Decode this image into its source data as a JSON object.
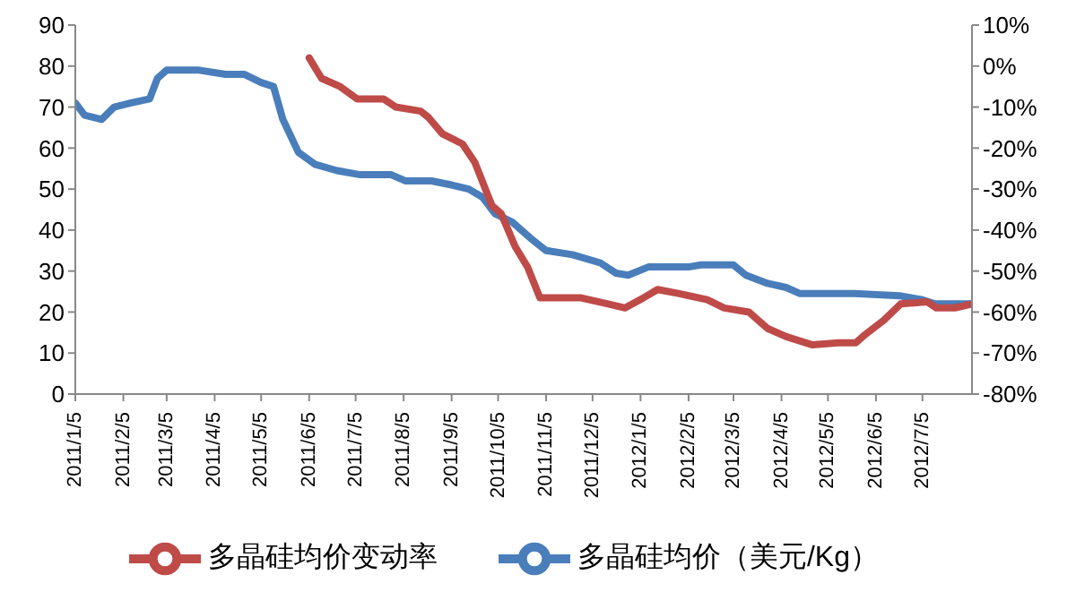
{
  "chart_data": {
    "type": "line",
    "legend": "bottom",
    "marker": "none",
    "line_style": "solid",
    "grid": false,
    "xlim": [
      "2011-01-05",
      "2012-08-06"
    ],
    "xticks": [
      {
        "value": "2011-01-05",
        "label": "2011/1/5"
      },
      {
        "value": "2011-02-05",
        "label": "2011/2/5"
      },
      {
        "value": "2011-03-05",
        "label": "2011/3/5"
      },
      {
        "value": "2011-04-05",
        "label": "2011/4/5"
      },
      {
        "value": "2011-05-05",
        "label": "2011/5/5"
      },
      {
        "value": "2011-06-05",
        "label": "2011/6/5"
      },
      {
        "value": "2011-07-05",
        "label": "2011/7/5"
      },
      {
        "value": "2011-08-05",
        "label": "2011/8/5"
      },
      {
        "value": "2011-09-05",
        "label": "2011/9/5"
      },
      {
        "value": "2011-10-05",
        "label": "2011/10/5"
      },
      {
        "value": "2011-11-05",
        "label": "2011/11/5"
      },
      {
        "value": "2011-12-05",
        "label": "2011/12/5"
      },
      {
        "value": "2012-01-05",
        "label": "2012/1/5"
      },
      {
        "value": "2012-02-05",
        "label": "2012/2/5"
      },
      {
        "value": "2012-03-05",
        "label": "2012/3/5"
      },
      {
        "value": "2012-04-05",
        "label": "2012/4/5"
      },
      {
        "value": "2012-05-05",
        "label": "2012/5/5"
      },
      {
        "value": "2012-06-05",
        "label": "2012/6/5"
      },
      {
        "value": "2012-07-05",
        "label": "2012/7/5"
      }
    ],
    "ylim": [
      0,
      90
    ],
    "yticks": [
      0,
      10,
      20,
      30,
      40,
      50,
      60,
      70,
      80,
      90
    ],
    "y2lim": [
      -80,
      10
    ],
    "y2ticks": [
      {
        "value": -80,
        "label": "-80%"
      },
      {
        "value": -70,
        "label": "-70%"
      },
      {
        "value": -60,
        "label": "-60%"
      },
      {
        "value": -50,
        "label": "-50%"
      },
      {
        "value": -40,
        "label": "-40%"
      },
      {
        "value": -30,
        "label": "-30%"
      },
      {
        "value": -20,
        "label": "-20%"
      },
      {
        "value": -10,
        "label": "-10%"
      },
      {
        "value": 0,
        "label": "0%"
      },
      {
        "value": 10,
        "label": "10%"
      }
    ],
    "series": [
      {
        "name": "多晶硅均价（美元/Kg）",
        "color": "#4a7ebb",
        "x": [
          "2011-01-05",
          "2011-01-11",
          "2011-01-22",
          "2011-01-30",
          "2011-02-10",
          "2011-02-22",
          "2011-02-27",
          "2011-03-05",
          "2011-03-26",
          "2011-04-12",
          "2011-04-24",
          "2011-05-05",
          "2011-05-13",
          "2011-05-19",
          "2011-05-29",
          "2011-06-09",
          "2011-06-23",
          "2011-07-08",
          "2011-07-28",
          "2011-08-06",
          "2011-08-23",
          "2011-09-05",
          "2011-09-16",
          "2011-09-25",
          "2011-10-03",
          "2011-10-14",
          "2011-10-26",
          "2011-11-05",
          "2011-11-22",
          "2011-12-10",
          "2011-12-20",
          "2011-12-28",
          "2012-01-10",
          "2012-02-05",
          "2012-02-13",
          "2012-03-05",
          "2012-03-13",
          "2012-03-27",
          "2012-04-08",
          "2012-04-17",
          "2012-05-22",
          "2012-06-20",
          "2012-07-05",
          "2012-07-13",
          "2012-08-05"
        ],
        "values": [
          71,
          68,
          67,
          70,
          71,
          72,
          77,
          79,
          79,
          78,
          78,
          76,
          75,
          67,
          59,
          56,
          54.5,
          53.5,
          53.5,
          52,
          52,
          51,
          50,
          48,
          44,
          42,
          38,
          35,
          34,
          32,
          29.5,
          29,
          31,
          31,
          31.5,
          31.5,
          29,
          27,
          26,
          24.5,
          24.5,
          24,
          23,
          22,
          22
        ]
      },
      {
        "name": "多晶硅均价变动率",
        "color": "#be4b48",
        "axis": "y2",
        "x": [
          "2011-06-05",
          "2011-06-13",
          "2011-06-25",
          "2011-07-06",
          "2011-07-23",
          "2011-07-31",
          "2011-08-16",
          "2011-08-21",
          "2011-08-30",
          "2011-09-12",
          "2011-09-20",
          "2011-10-01",
          "2011-10-07",
          "2011-10-16",
          "2011-10-24",
          "2011-11-01",
          "2011-11-10",
          "2011-11-27",
          "2011-12-15",
          "2011-12-26",
          "2012-01-07",
          "2012-01-16",
          "2012-01-30",
          "2012-02-17",
          "2012-02-28",
          "2012-03-15",
          "2012-03-27",
          "2012-04-08",
          "2012-04-25",
          "2012-05-12",
          "2012-05-23",
          "2012-05-29",
          "2012-06-10",
          "2012-06-21",
          "2012-07-08",
          "2012-07-14",
          "2012-07-26",
          "2012-08-06"
        ],
        "values": [
          2,
          -3,
          -5,
          -8,
          -8,
          -10,
          -11,
          -12.5,
          -16.5,
          -19,
          -23.5,
          -34,
          -36,
          -44,
          -49,
          -56.5,
          -56.5,
          -56.5,
          -58,
          -59,
          -56.5,
          -54.5,
          -55.5,
          -57,
          -59,
          -60,
          -64,
          -66,
          -68,
          -67.5,
          -67.5,
          -65.5,
          -62,
          -58,
          -57.5,
          -59,
          -59,
          -58
        ]
      }
    ]
  }
}
